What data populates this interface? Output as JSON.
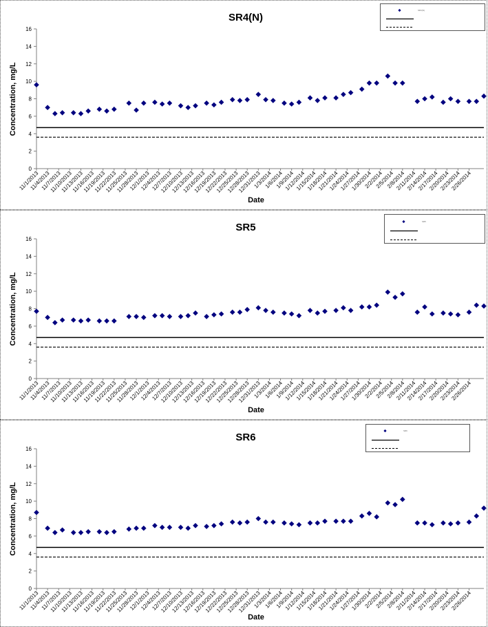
{
  "common": {
    "ylabel": "Concentration, mg/L",
    "xlabel": "Date",
    "ylim": [
      0,
      16
    ],
    "yticks": [
      "0",
      "2",
      "4",
      "6",
      "8",
      "10",
      "12",
      "14",
      "16"
    ],
    "xtick_labels": [
      "11/1/2013",
      "11/4/2013",
      "11/7/2013",
      "11/10/2013",
      "11/13/2013",
      "11/16/2013",
      "11/19/2013",
      "11/22/2013",
      "11/25/2013",
      "11/28/2013",
      "12/1/2013",
      "12/4/2013",
      "12/7/2013",
      "12/10/2013",
      "12/13/2013",
      "12/16/2013",
      "12/19/2013",
      "12/22/2013",
      "12/25/2013",
      "12/28/2013",
      "12/31/2013",
      "1/3/2014",
      "1/6/2014",
      "1/9/2014",
      "1/12/2014",
      "1/15/2014",
      "1/18/2014",
      "1/21/2014",
      "1/24/2014",
      "1/27/2014",
      "1/30/2014",
      "2/2/2014",
      "2/5/2014",
      "2/8/2014",
      "2/11/2014",
      "2/14/2014",
      "2/17/2014",
      "2/20/2014",
      "2/23/2014",
      "2/26/2014"
    ],
    "colors": {
      "marker": "#00007f",
      "line": "#000000",
      "axis": "#808080"
    }
  },
  "chart_data": [
    {
      "type": "scatter",
      "title": "SR4(N)",
      "xlabel": "Date",
      "ylabel": "Concentration, mg/L",
      "ylim": [
        0,
        16
      ],
      "grid": false,
      "legend": "top-right",
      "legend_entries": [
        "SR4(N)",
        "",
        ""
      ],
      "x": [
        "11/1/2013",
        "11/4/2013",
        "11/6/2013",
        "11/8/2013",
        "11/11/2013",
        "11/13/2013",
        "11/15/2013",
        "11/18/2013",
        "11/20/2013",
        "11/22/2013",
        "11/26/2013",
        "11/28/2013",
        "11/30/2013",
        "12/3/2013",
        "12/5/2013",
        "12/7/2013",
        "12/10/2013",
        "12/12/2013",
        "12/14/2013",
        "12/17/2013",
        "12/19/2013",
        "12/21/2013",
        "12/24/2013",
        "12/26/2013",
        "12/28/2013",
        "12/31/2013",
        "1/2/2014",
        "1/4/2014",
        "1/7/2014",
        "1/9/2014",
        "1/11/2014",
        "1/14/2014",
        "1/16/2014",
        "1/18/2014",
        "1/21/2014",
        "1/23/2014",
        "1/25/2014",
        "1/28/2014",
        "1/30/2014",
        "2/1/2014",
        "2/4/2014",
        "2/6/2014",
        "2/8/2014",
        "2/12/2014",
        "2/14/2014",
        "2/16/2014",
        "2/19/2014",
        "2/21/2014",
        "2/23/2014",
        "2/26/2014",
        "2/28/2014",
        "3/2/2014"
      ],
      "values": [
        9.6,
        7.0,
        6.3,
        6.4,
        6.4,
        6.3,
        6.6,
        6.8,
        6.6,
        6.8,
        7.5,
        6.7,
        7.5,
        7.6,
        7.4,
        7.5,
        7.2,
        7.0,
        7.2,
        7.5,
        7.3,
        7.6,
        7.9,
        7.8,
        7.9,
        8.5,
        7.9,
        7.8,
        7.5,
        7.4,
        7.6,
        8.1,
        7.8,
        8.1,
        8.1,
        8.5,
        8.7,
        9.1,
        9.8,
        9.8,
        10.6,
        9.8,
        9.8,
        7.7,
        8.0,
        8.2,
        7.6,
        8.0,
        7.7,
        7.7,
        7.7,
        8.3
      ],
      "reference_lines": [
        {
          "style": "solid",
          "value": 4.7
        },
        {
          "style": "dashed",
          "value": 3.6
        }
      ]
    },
    {
      "type": "scatter",
      "title": "SR5",
      "xlabel": "Date",
      "ylabel": "Concentration, mg/L",
      "ylim": [
        0,
        16
      ],
      "grid": false,
      "legend": "top-right",
      "legend_entries": [
        "SR5",
        "",
        ""
      ],
      "x": [
        "11/1/2013",
        "11/4/2013",
        "11/6/2013",
        "11/8/2013",
        "11/11/2013",
        "11/13/2013",
        "11/15/2013",
        "11/18/2013",
        "11/20/2013",
        "11/22/2013",
        "11/26/2013",
        "11/28/2013",
        "11/30/2013",
        "12/3/2013",
        "12/5/2013",
        "12/7/2013",
        "12/10/2013",
        "12/12/2013",
        "12/14/2013",
        "12/17/2013",
        "12/19/2013",
        "12/21/2013",
        "12/24/2013",
        "12/26/2013",
        "12/28/2013",
        "12/31/2013",
        "1/2/2014",
        "1/4/2014",
        "1/7/2014",
        "1/9/2014",
        "1/11/2014",
        "1/14/2014",
        "1/16/2014",
        "1/18/2014",
        "1/21/2014",
        "1/23/2014",
        "1/25/2014",
        "1/28/2014",
        "1/30/2014",
        "2/1/2014",
        "2/4/2014",
        "2/6/2014",
        "2/8/2014",
        "2/12/2014",
        "2/14/2014",
        "2/16/2014",
        "2/19/2014",
        "2/21/2014",
        "2/23/2014",
        "2/26/2014",
        "2/28/2014",
        "3/2/2014"
      ],
      "values": [
        7.7,
        7.0,
        6.4,
        6.7,
        6.7,
        6.6,
        6.7,
        6.6,
        6.6,
        6.6,
        7.1,
        7.1,
        7.0,
        7.2,
        7.2,
        7.1,
        7.1,
        7.2,
        7.5,
        7.1,
        7.3,
        7.4,
        7.6,
        7.6,
        7.9,
        8.1,
        7.8,
        7.6,
        7.5,
        7.4,
        7.2,
        7.8,
        7.5,
        7.7,
        7.8,
        8.1,
        7.8,
        8.2,
        8.2,
        8.4,
        9.9,
        9.3,
        9.7,
        7.6,
        8.2,
        7.4,
        7.5,
        7.4,
        7.3,
        7.6,
        8.4,
        8.3
      ],
      "reference_lines": [
        {
          "style": "solid",
          "value": 4.7
        },
        {
          "style": "dashed",
          "value": 3.6
        }
      ]
    },
    {
      "type": "scatter",
      "title": "SR6",
      "xlabel": "Date",
      "ylabel": "Concentration, mg/L",
      "ylim": [
        0,
        16
      ],
      "grid": false,
      "legend": "top-right",
      "legend_entries": [
        "SR6",
        "",
        ""
      ],
      "x": [
        "11/1/2013",
        "11/4/2013",
        "11/6/2013",
        "11/8/2013",
        "11/11/2013",
        "11/13/2013",
        "11/15/2013",
        "11/18/2013",
        "11/20/2013",
        "11/22/2013",
        "11/26/2013",
        "11/28/2013",
        "11/30/2013",
        "12/3/2013",
        "12/5/2013",
        "12/7/2013",
        "12/10/2013",
        "12/12/2013",
        "12/14/2013",
        "12/17/2013",
        "12/19/2013",
        "12/21/2013",
        "12/24/2013",
        "12/26/2013",
        "12/28/2013",
        "12/31/2013",
        "1/2/2014",
        "1/4/2014",
        "1/7/2014",
        "1/9/2014",
        "1/11/2014",
        "1/14/2014",
        "1/16/2014",
        "1/18/2014",
        "1/21/2014",
        "1/23/2014",
        "1/25/2014",
        "1/28/2014",
        "1/30/2014",
        "2/1/2014",
        "2/4/2014",
        "2/6/2014",
        "2/8/2014",
        "2/12/2014",
        "2/14/2014",
        "2/16/2014",
        "2/19/2014",
        "2/21/2014",
        "2/23/2014",
        "2/26/2014",
        "2/28/2014",
        "3/2/2014"
      ],
      "values": [
        8.7,
        6.9,
        6.4,
        6.7,
        6.4,
        6.4,
        6.5,
        6.5,
        6.4,
        6.5,
        6.8,
        6.9,
        6.9,
        7.2,
        7.0,
        7.0,
        7.0,
        6.9,
        7.2,
        7.1,
        7.2,
        7.4,
        7.6,
        7.5,
        7.6,
        8.0,
        7.6,
        7.6,
        7.5,
        7.4,
        7.3,
        7.5,
        7.5,
        7.7,
        7.7,
        7.7,
        7.7,
        8.3,
        8.6,
        8.2,
        9.8,
        9.6,
        10.2,
        7.5,
        7.5,
        7.3,
        7.5,
        7.4,
        7.5,
        7.6,
        8.3,
        9.2
      ],
      "reference_lines": [
        {
          "style": "solid",
          "value": 4.7
        },
        {
          "style": "dashed",
          "value": 3.6
        }
      ]
    }
  ]
}
